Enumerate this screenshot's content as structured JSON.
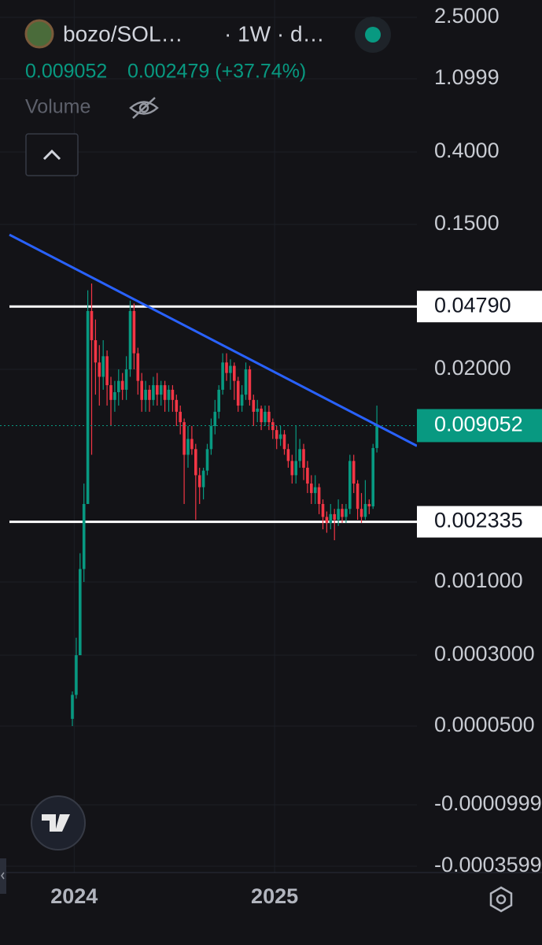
{
  "chart_data": {
    "type": "candlestick",
    "title": "bozo/SOL…",
    "interval": "· 1W · d…",
    "last": 0.009052,
    "change": "0.002479 (+37.74%)",
    "volume_label": "Volume",
    "up_color": "#089981",
    "down_color": "#f23645",
    "open": [
      6e-05,
      0.00011,
      0.0003,
      0.0012,
      0.003,
      0.045,
      0.03,
      0.022,
      0.018,
      0.024,
      0.016,
      0.013,
      0.0145,
      0.017,
      0.015,
      0.02,
      0.045,
      0.025,
      0.017,
      0.013,
      0.015,
      0.013,
      0.016,
      0.014,
      0.016,
      0.013,
      0.015,
      0.013,
      0.011,
      0.0095,
      0.006,
      0.0075,
      0.0065,
      0.0045,
      0.0038,
      0.0048,
      0.0065,
      0.009,
      0.011,
      0.015,
      0.022,
      0.019,
      0.021,
      0.017,
      0.012,
      0.014,
      0.02,
      0.013,
      0.011,
      0.0115,
      0.0095,
      0.011,
      0.0095,
      0.0085,
      0.0075,
      0.008,
      0.0065,
      0.0055,
      0.0045,
      0.0055,
      0.0065,
      0.005,
      0.004,
      0.0035,
      0.0038,
      0.003,
      0.0025,
      0.0023,
      0.0026,
      0.0024,
      0.0028,
      0.0025,
      0.0028,
      0.0055,
      0.004,
      0.0028,
      0.0025,
      0.003,
      0.0029,
      0.0066
    ],
    "high": [
      0.00012,
      0.0004,
      0.0015,
      0.004,
      0.06,
      0.066,
      0.04,
      0.028,
      0.03,
      0.026,
      0.018,
      0.017,
      0.02,
      0.019,
      0.024,
      0.052,
      0.05,
      0.027,
      0.019,
      0.017,
      0.016,
      0.018,
      0.019,
      0.017,
      0.017,
      0.016,
      0.016,
      0.014,
      0.012,
      0.01,
      0.009,
      0.009,
      0.007,
      0.005,
      0.005,
      0.007,
      0.01,
      0.013,
      0.016,
      0.025,
      0.025,
      0.023,
      0.022,
      0.018,
      0.016,
      0.022,
      0.021,
      0.014,
      0.013,
      0.012,
      0.012,
      0.012,
      0.01,
      0.009,
      0.009,
      0.0085,
      0.007,
      0.006,
      0.009,
      0.0075,
      0.007,
      0.0055,
      0.0045,
      0.0045,
      0.004,
      0.0032,
      0.0027,
      0.003,
      0.0028,
      0.0032,
      0.003,
      0.003,
      0.006,
      0.006,
      0.0042,
      0.0035,
      0.0042,
      0.0032,
      0.007,
      0.012
    ],
    "low": [
      5e-05,
      0.0001,
      0.0003,
      0.001,
      0.003,
      0.006,
      0.014,
      0.012,
      0.015,
      0.012,
      0.009,
      0.011,
      0.012,
      0.013,
      0.013,
      0.018,
      0.02,
      0.014,
      0.011,
      0.011,
      0.011,
      0.012,
      0.012,
      0.012,
      0.011,
      0.011,
      0.011,
      0.009,
      0.008,
      0.003,
      0.005,
      0.006,
      0.0024,
      0.003,
      0.0032,
      0.0045,
      0.006,
      0.008,
      0.01,
      0.014,
      0.017,
      0.015,
      0.013,
      0.011,
      0.011,
      0.013,
      0.012,
      0.009,
      0.0095,
      0.0085,
      0.009,
      0.0085,
      0.0075,
      0.0065,
      0.0068,
      0.006,
      0.005,
      0.004,
      0.004,
      0.005,
      0.0042,
      0.0035,
      0.003,
      0.003,
      0.0026,
      0.0021,
      0.002,
      0.0021,
      0.0018,
      0.0022,
      0.0023,
      0.0023,
      0.0026,
      0.0035,
      0.0024,
      0.0023,
      0.0024,
      0.0026,
      0.0028,
      0.0062
    ],
    "close": [
      0.00011,
      0.0003,
      0.0012,
      0.003,
      0.045,
      0.03,
      0.022,
      0.018,
      0.024,
      0.016,
      0.013,
      0.0145,
      0.017,
      0.015,
      0.02,
      0.045,
      0.025,
      0.017,
      0.013,
      0.015,
      0.013,
      0.016,
      0.014,
      0.016,
      0.013,
      0.015,
      0.013,
      0.011,
      0.0095,
      0.006,
      0.0075,
      0.0065,
      0.0045,
      0.0038,
      0.0048,
      0.0065,
      0.009,
      0.011,
      0.015,
      0.022,
      0.019,
      0.021,
      0.017,
      0.012,
      0.014,
      0.02,
      0.013,
      0.011,
      0.0115,
      0.0095,
      0.011,
      0.0095,
      0.0085,
      0.0075,
      0.008,
      0.0065,
      0.0055,
      0.0045,
      0.0055,
      0.0065,
      0.005,
      0.004,
      0.0035,
      0.0038,
      0.003,
      0.0025,
      0.0023,
      0.0026,
      0.0024,
      0.0028,
      0.0025,
      0.0028,
      0.0055,
      0.004,
      0.0028,
      0.0025,
      0.003,
      0.0029,
      0.0066,
      0.009052
    ],
    "ylim": [
      -0.0003599,
      2.5
    ],
    "yticks": [
      {
        "value": 2.5,
        "label": "2.5000"
      },
      {
        "value": 1.0999,
        "label": "1.0999"
      },
      {
        "value": 0.4,
        "label": "0.4000"
      },
      {
        "value": 0.15,
        "label": "0.1500"
      },
      {
        "value": 0.02,
        "label": "0.02000"
      },
      {
        "value": 0.001,
        "label": "0.001000"
      },
      {
        "value": 0.0003,
        "label": "0.0003000"
      },
      {
        "value": 5e-05,
        "label": "0.0000500"
      },
      {
        "value": -9.99e-05,
        "label": "-0.0000999"
      },
      {
        "value": -0.0003599,
        "label": "-0.0003599"
      }
    ],
    "xlim": [
      2023.63,
      2025.71
    ],
    "xticks": [
      2024,
      2025
    ],
    "levels": [
      {
        "value": 0.0479,
        "label": "0.04790"
      },
      {
        "value": 0.002335,
        "label": "0.002335"
      }
    ],
    "trendline": {
      "start": 0.13,
      "end": 0.0068,
      "color": "#2962ff"
    },
    "grid": true
  }
}
